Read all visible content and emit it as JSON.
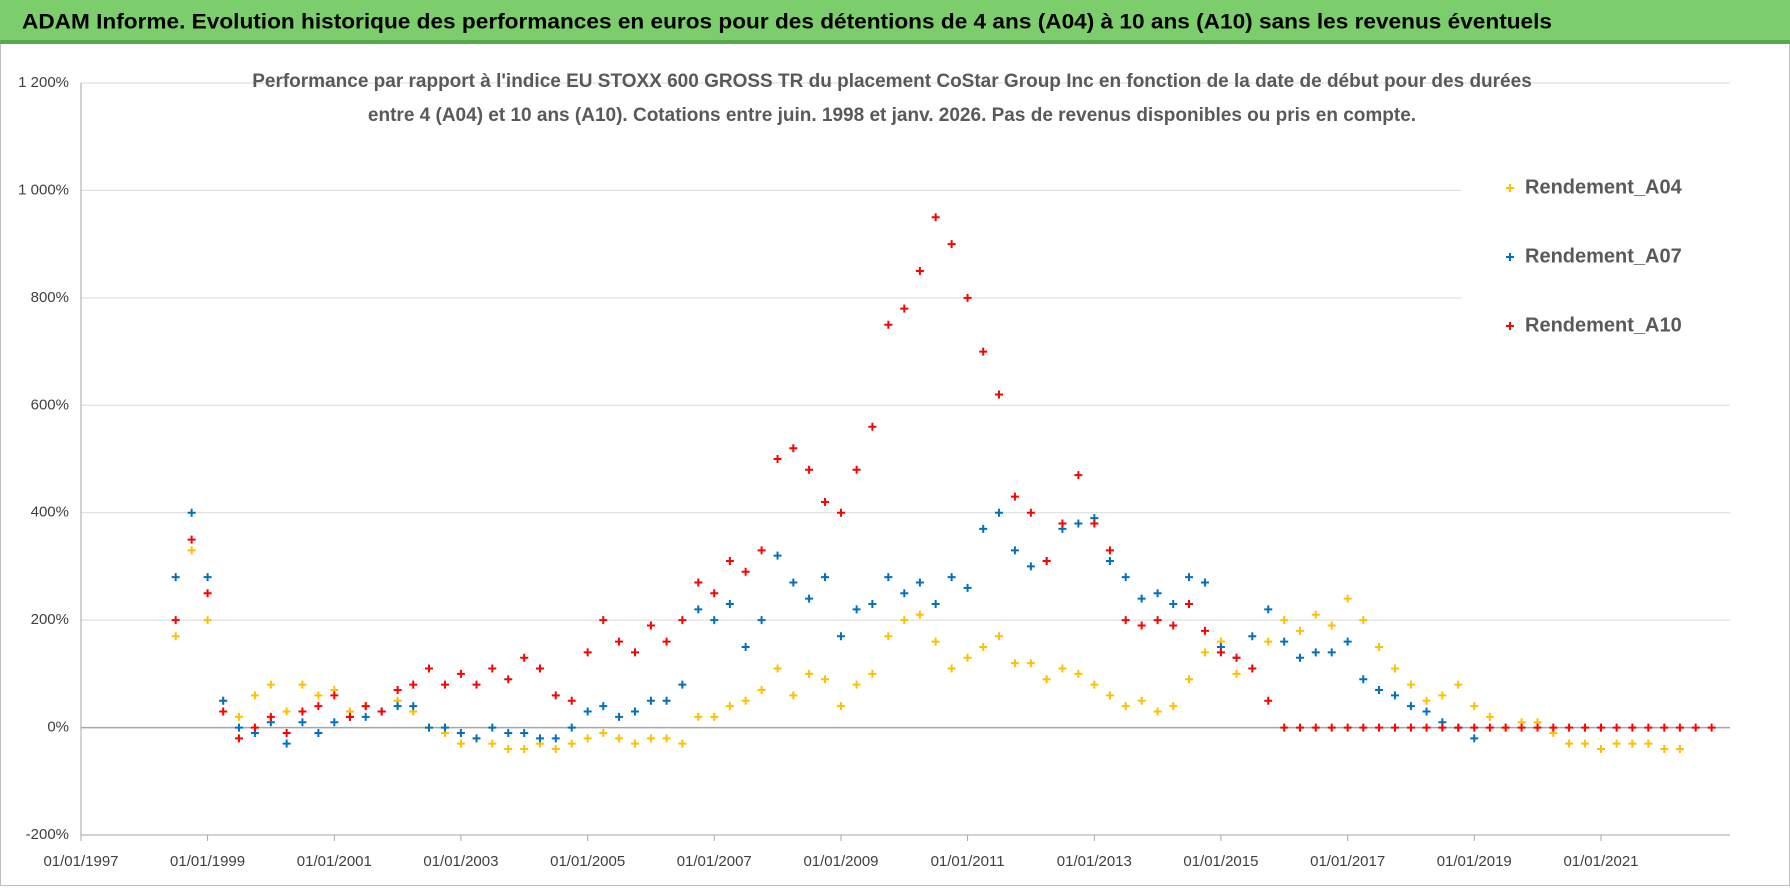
{
  "chart_data": {
    "type": "scatter",
    "title": "ADAM Informe. Evolution historique des performances en euros pour des détentions de 4 ans (A04) à 10 ans (A10) sans les revenus éventuels",
    "subtitle": [
      "Performance par rapport à l'indice EU STOXX 600 GROSS TR  du placement CoStar Group Inc en fonction de la date de début pour des durées",
      "entre 4 (A04) et 10 ans (A10).  Cotations entre juin. 1998 et janv. 2026. Pas de revenus disponibles ou pris en compte."
    ],
    "xlim": [
      "01/01/1997",
      "15/01/2023"
    ],
    "xticks": [
      "01/01/1997",
      "01/01/1999",
      "01/01/2001",
      "01/01/2003",
      "01/01/2005",
      "01/01/2007",
      "01/01/2009",
      "01/01/2011",
      "01/01/2013",
      "01/01/2015",
      "01/01/2017",
      "01/01/2019",
      "01/01/2021"
    ],
    "ylim": [
      -200,
      1200
    ],
    "yticks": [
      {
        "value": -200,
        "label": "-200%"
      },
      {
        "value": 0,
        "label": "0%"
      },
      {
        "value": 200,
        "label": "200%"
      },
      {
        "value": 400,
        "label": "400%"
      },
      {
        "value": 600,
        "label": "600%"
      },
      {
        "value": 800,
        "label": "800%"
      },
      {
        "value": 1000,
        "label": "1 000%"
      },
      {
        "value": 1200,
        "label": "1 200%"
      }
    ],
    "grid": true,
    "legend": "top-right",
    "x": [
      "01/07/1998",
      "01/10/1998",
      "01/01/1999",
      "01/04/1999",
      "01/07/1999",
      "01/10/1999",
      "01/01/2000",
      "01/04/2000",
      "01/07/2000",
      "01/10/2000",
      "01/01/2001",
      "01/04/2001",
      "01/07/2001",
      "01/10/2001",
      "01/01/2002",
      "01/04/2002",
      "01/07/2002",
      "01/10/2002",
      "01/01/2003",
      "01/04/2003",
      "01/07/2003",
      "01/10/2003",
      "01/01/2004",
      "01/04/2004",
      "01/07/2004",
      "01/10/2004",
      "01/01/2005",
      "01/04/2005",
      "01/07/2005",
      "01/10/2005",
      "01/01/2006",
      "01/04/2006",
      "01/07/2006",
      "01/10/2006",
      "01/01/2007",
      "01/04/2007",
      "01/07/2007",
      "01/10/2007",
      "01/01/2008",
      "01/04/2008",
      "01/07/2008",
      "01/10/2008",
      "01/01/2009",
      "01/04/2009",
      "01/07/2009",
      "01/10/2009",
      "01/01/2010",
      "01/04/2010",
      "01/07/2010",
      "01/10/2010",
      "01/01/2011",
      "01/04/2011",
      "01/07/2011",
      "01/10/2011",
      "01/01/2012",
      "01/04/2012",
      "01/07/2012",
      "01/10/2012",
      "01/01/2013",
      "01/04/2013",
      "01/07/2013",
      "01/10/2013",
      "01/01/2014",
      "01/04/2014",
      "01/07/2014",
      "01/10/2014",
      "01/01/2015",
      "01/04/2015",
      "01/07/2015",
      "01/10/2015",
      "01/01/2016",
      "01/04/2016",
      "01/07/2016",
      "01/10/2016",
      "01/01/2017",
      "01/04/2017",
      "01/07/2017",
      "01/10/2017",
      "01/01/2018",
      "01/04/2018",
      "01/07/2018",
      "01/10/2018",
      "01/01/2019",
      "01/04/2019",
      "01/07/2019",
      "01/10/2019",
      "01/01/2020",
      "01/04/2020",
      "01/07/2020",
      "01/10/2020",
      "01/01/2021",
      "01/04/2021",
      "01/07/2021",
      "01/10/2021",
      "01/01/2022",
      "01/04/2022",
      "01/07/2022",
      "01/10/2022"
    ],
    "series": [
      {
        "name": "Rendement_A04",
        "color": "#ffc000",
        "values": [
          170,
          330,
          200,
          50,
          20,
          60,
          80,
          30,
          80,
          60,
          70,
          30,
          40,
          30,
          50,
          30,
          0,
          -10,
          -30,
          -20,
          -30,
          -40,
          -40,
          -30,
          -40,
          -30,
          -20,
          -10,
          -20,
          -30,
          -20,
          -20,
          -30,
          20,
          20,
          40,
          50,
          70,
          110,
          60,
          100,
          90,
          40,
          80,
          100,
          170,
          200,
          210,
          160,
          110,
          130,
          150,
          170,
          120,
          120,
          90,
          110,
          100,
          80,
          60,
          40,
          50,
          30,
          40,
          90,
          140,
          160,
          100,
          110,
          160,
          200,
          180,
          210,
          190,
          240,
          200,
          150,
          110,
          80,
          50,
          60,
          80,
          40,
          20,
          0,
          10,
          10,
          -10,
          -30,
          -30,
          -40,
          -30,
          -30,
          -30,
          -40,
          -40,
          null,
          null
        ]
      },
      {
        "name": "Rendement_A07",
        "color": "#0070c0",
        "values": [
          280,
          400,
          280,
          50,
          0,
          -10,
          10,
          -30,
          10,
          -10,
          10,
          20,
          20,
          30,
          40,
          40,
          0,
          0,
          -10,
          -20,
          0,
          -10,
          -10,
          -20,
          -20,
          0,
          30,
          40,
          20,
          30,
          50,
          50,
          80,
          220,
          200,
          230,
          150,
          200,
          320,
          270,
          240,
          280,
          170,
          220,
          230,
          280,
          250,
          270,
          230,
          280,
          260,
          370,
          400,
          330,
          300,
          310,
          370,
          380,
          390,
          310,
          280,
          240,
          250,
          230,
          280,
          270,
          150,
          130,
          170,
          220,
          160,
          130,
          140,
          140,
          160,
          90,
          70,
          60,
          40,
          30,
          10,
          0,
          -20,
          null,
          null,
          null,
          null,
          null,
          null,
          null,
          null,
          null,
          null,
          null,
          null,
          null,
          null,
          null
        ]
      },
      {
        "name": "Rendement_A10",
        "color": "#ff0000",
        "values": [
          200,
          350,
          250,
          30,
          -20,
          0,
          20,
          -10,
          30,
          40,
          60,
          20,
          40,
          30,
          70,
          80,
          110,
          80,
          100,
          80,
          110,
          90,
          130,
          110,
          60,
          50,
          140,
          200,
          160,
          140,
          190,
          160,
          200,
          270,
          250,
          310,
          290,
          330,
          500,
          520,
          480,
          420,
          400,
          480,
          560,
          750,
          780,
          850,
          950,
          900,
          800,
          700,
          620,
          430,
          400,
          310,
          380,
          470,
          380,
          330,
          200,
          190,
          200,
          190,
          230,
          180,
          140,
          130,
          110,
          50,
          0,
          0,
          0,
          0,
          0,
          0,
          0,
          0,
          0,
          0,
          0,
          0,
          0,
          0,
          0,
          0,
          0,
          0,
          0,
          0,
          0,
          0,
          0,
          0,
          0,
          0,
          0,
          0
        ]
      }
    ]
  }
}
